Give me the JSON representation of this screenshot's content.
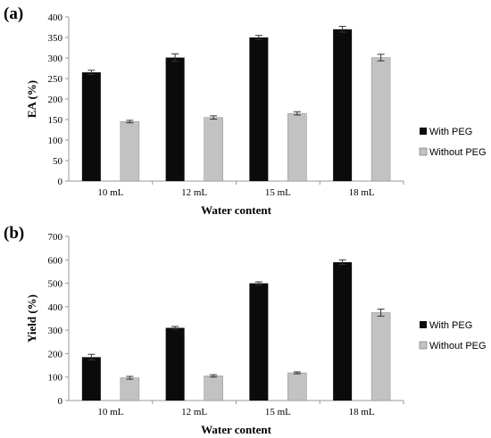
{
  "colors": {
    "with_peg": "#0b0b0b",
    "without_peg": "#c2c2c2",
    "error_bar": "#333333",
    "axis": "#9a9a9a"
  },
  "chart_data": [
    {
      "type": "bar",
      "panel_label": "(a)",
      "categories": [
        "10 mL",
        "12 mL",
        "15 mL",
        "18 mL"
      ],
      "series": [
        {
          "name": "With PEG",
          "values": [
            265,
            301,
            350,
            370
          ],
          "errors": [
            5,
            9,
            5,
            7
          ]
        },
        {
          "name": "Without PEG",
          "values": [
            145,
            155,
            165,
            301
          ],
          "errors": [
            3,
            4,
            4,
            8
          ]
        }
      ],
      "xlabel": "Water content",
      "ylabel": "EA (%)",
      "ylim": [
        0,
        400
      ],
      "yticks": [
        0,
        50,
        100,
        150,
        200,
        250,
        300,
        350,
        400
      ],
      "grid": false,
      "legend": "right"
    },
    {
      "type": "bar",
      "panel_label": "(b)",
      "categories": [
        "10 mL",
        "12 mL",
        "15 mL",
        "18 mL"
      ],
      "series": [
        {
          "name": "With PEG",
          "values": [
            185,
            310,
            500,
            590
          ],
          "errors": [
            12,
            6,
            6,
            10
          ]
        },
        {
          "name": "Without PEG",
          "values": [
            97,
            105,
            118,
            375
          ],
          "errors": [
            6,
            5,
            4,
            15
          ]
        }
      ],
      "xlabel": "Water content",
      "ylabel": "Yield (%)",
      "ylim": [
        0,
        700
      ],
      "yticks": [
        0,
        100,
        200,
        300,
        400,
        500,
        600,
        700
      ],
      "grid": false,
      "legend": "right"
    }
  ]
}
